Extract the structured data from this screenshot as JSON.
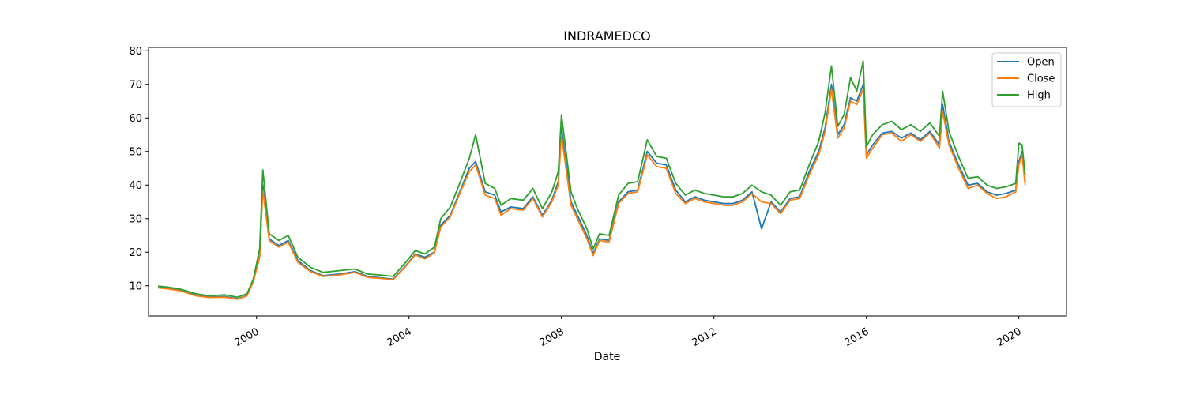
{
  "chart_data": {
    "type": "line",
    "title": "INDRAMEDCO",
    "xlabel": "Date",
    "ylabel": "",
    "xlim": [
      "1997-03-01",
      "2021-04-01"
    ],
    "ylim": [
      1,
      81
    ],
    "y_ticks": [
      10,
      20,
      30,
      40,
      50,
      60,
      70,
      80
    ],
    "x_ticks": [
      "2000",
      "2004",
      "2008",
      "2012",
      "2016",
      "2020"
    ],
    "legend_position": "top-right",
    "grid": false,
    "x": [
      "1997-06",
      "1997-09",
      "1998-01",
      "1998-06",
      "1998-10",
      "1999-03",
      "1999-07",
      "1999-10",
      "1999-12",
      "2000-02",
      "2000-03",
      "2000-05",
      "2000-08",
      "2000-11",
      "2001-02",
      "2001-06",
      "2001-10",
      "2002-03",
      "2002-08",
      "2002-12",
      "2003-04",
      "2003-08",
      "2003-12",
      "2004-03",
      "2004-06",
      "2004-09",
      "2004-11",
      "2005-02",
      "2005-05",
      "2005-08",
      "2005-10",
      "2006-01",
      "2006-04",
      "2006-06",
      "2006-09",
      "2007-01",
      "2007-04",
      "2007-07",
      "2007-10",
      "2007-12",
      "2008-01",
      "2008-04",
      "2008-06",
      "2008-09",
      "2008-11",
      "2009-01",
      "2009-04",
      "2009-07",
      "2009-10",
      "2010-01",
      "2010-04",
      "2010-07",
      "2010-10",
      "2011-01",
      "2011-04",
      "2011-07",
      "2011-10",
      "2012-01",
      "2012-04",
      "2012-07",
      "2012-10",
      "2013-01",
      "2013-04",
      "2013-07",
      "2013-10",
      "2014-01",
      "2014-04",
      "2014-07",
      "2014-10",
      "2014-12",
      "2015-02",
      "2015-04",
      "2015-06",
      "2015-08",
      "2015-10",
      "2015-12",
      "2016-01",
      "2016-03",
      "2016-06",
      "2016-09",
      "2016-12",
      "2017-03",
      "2017-06",
      "2017-09",
      "2017-12",
      "2018-01",
      "2018-03",
      "2018-06",
      "2018-09",
      "2018-12",
      "2019-03",
      "2019-06",
      "2019-09",
      "2019-12",
      "2020-01",
      "2020-02",
      "2020-03"
    ],
    "series": [
      {
        "name": "Open",
        "color": "#1f77b4",
        "values": [
          9.5,
          9.2,
          8.6,
          7.2,
          6.6,
          6.8,
          6.1,
          7.1,
          11.5,
          19.0,
          40.0,
          24.0,
          22.0,
          23.5,
          17.5,
          14.5,
          13.0,
          13.5,
          14.2,
          12.8,
          12.4,
          12.0,
          16.0,
          19.5,
          18.5,
          20.0,
          28.0,
          31.0,
          38.0,
          45.0,
          47.0,
          38.0,
          37.0,
          32.0,
          33.5,
          33.0,
          36.5,
          31.0,
          35.5,
          41.0,
          57.0,
          35.0,
          31.0,
          25.0,
          19.5,
          24.0,
          23.5,
          35.0,
          38.0,
          38.5,
          50.0,
          46.5,
          46.0,
          38.5,
          35.0,
          36.5,
          35.5,
          35.0,
          34.5,
          34.5,
          35.5,
          38.0,
          27.0,
          35.0,
          32.0,
          36.0,
          36.5,
          44.0,
          50.0,
          57.0,
          70.0,
          55.0,
          58.0,
          66.0,
          65.0,
          70.0,
          49.0,
          52.0,
          55.5,
          56.0,
          54.0,
          55.5,
          53.5,
          56.0,
          52.0,
          64.0,
          53.0,
          46.0,
          40.0,
          40.5,
          38.0,
          37.0,
          37.5,
          38.5,
          47.0,
          50.0,
          41.0
        ]
      },
      {
        "name": "Close",
        "color": "#ff7f0e",
        "values": [
          9.4,
          9.1,
          8.5,
          7.0,
          6.5,
          6.6,
          6.0,
          7.0,
          11.2,
          18.5,
          38.5,
          23.5,
          21.5,
          23.0,
          17.0,
          14.2,
          12.8,
          13.2,
          14.0,
          12.5,
          12.2,
          11.8,
          15.8,
          19.2,
          18.0,
          19.8,
          27.5,
          30.5,
          37.5,
          44.0,
          46.0,
          37.0,
          36.0,
          31.0,
          33.0,
          32.5,
          36.0,
          30.5,
          35.0,
          40.0,
          55.0,
          34.0,
          30.0,
          24.0,
          19.0,
          23.5,
          23.0,
          34.5,
          37.5,
          38.0,
          49.0,
          45.5,
          45.0,
          37.5,
          34.5,
          36.0,
          35.0,
          34.5,
          34.0,
          34.0,
          35.0,
          37.5,
          35.0,
          34.5,
          31.5,
          35.5,
          36.0,
          43.0,
          49.0,
          56.0,
          68.5,
          54.0,
          57.0,
          65.0,
          64.0,
          68.5,
          48.0,
          51.0,
          55.0,
          55.5,
          53.0,
          55.0,
          53.0,
          55.5,
          51.0,
          62.0,
          52.0,
          45.0,
          39.0,
          40.0,
          37.5,
          36.0,
          36.5,
          38.0,
          46.0,
          49.0,
          40.0
        ]
      },
      {
        "name": "High",
        "color": "#2ca02c",
        "values": [
          9.9,
          9.6,
          9.0,
          7.6,
          7.0,
          7.3,
          6.6,
          7.6,
          12.0,
          21.0,
          44.5,
          25.5,
          23.5,
          25.0,
          18.5,
          15.5,
          14.0,
          14.5,
          15.0,
          13.5,
          13.2,
          12.8,
          17.0,
          20.5,
          19.5,
          21.5,
          30.0,
          33.5,
          40.5,
          48.0,
          55.0,
          40.5,
          39.0,
          34.0,
          36.0,
          35.5,
          39.0,
          33.0,
          38.0,
          44.0,
          61.0,
          38.0,
          33.0,
          27.0,
          21.0,
          25.5,
          25.0,
          37.0,
          40.5,
          41.0,
          53.5,
          48.5,
          48.0,
          40.5,
          37.0,
          38.5,
          37.5,
          37.0,
          36.5,
          36.5,
          37.5,
          40.0,
          38.0,
          37.0,
          34.0,
          38.0,
          38.5,
          46.0,
          53.0,
          61.5,
          75.5,
          57.5,
          61.0,
          72.0,
          68.0,
          77.0,
          51.5,
          55.0,
          58.0,
          59.0,
          56.5,
          58.0,
          56.0,
          58.5,
          54.5,
          68.0,
          56.0,
          48.5,
          42.0,
          42.5,
          40.0,
          39.0,
          39.5,
          40.5,
          52.5,
          52.0,
          43.0
        ]
      }
    ]
  }
}
